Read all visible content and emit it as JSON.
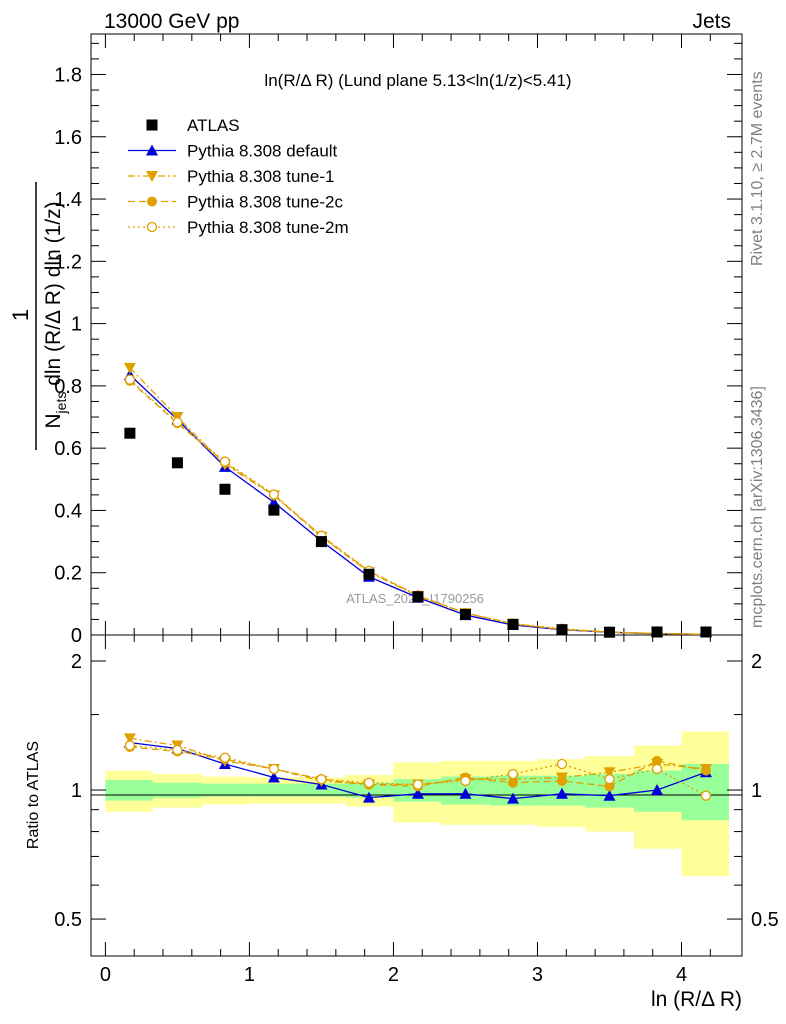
{
  "header": {
    "left": "13000 GeV pp",
    "right": "Jets",
    "side_top": "Rivet 3.1.10, ≥ 2.7M events",
    "side_bottom": "mcplots.cern.ch [arXiv:1306.3436]",
    "watermark": "ATLAS_2020_I1790256"
  },
  "chart_data": {
    "type": "scatter",
    "title": "ln(R/Δ R) (Lund plane 5.13<ln(1/z)<5.41)",
    "xlabel": "ln (R/Δ R)",
    "ylabel_main": "1/N_jets d²N_emissions / dln(R/ΔR) dln(1/z)",
    "ylabel_ratio": "Ratio to ATLAS",
    "xlim": [
      -0.1,
      4.42
    ],
    "ylim_main": [
      0,
      1.93
    ],
    "ylim_ratio": [
      0.41,
      2.3
    ],
    "ratio_log_scale": true,
    "x_ticks": [
      "0",
      "1",
      "2",
      "3",
      "4"
    ],
    "y_ticks_main": [
      "0",
      "0.2",
      "0.4",
      "0.6",
      "0.8",
      "1",
      "1.2",
      "1.4",
      "1.6",
      "1.8"
    ],
    "y_ticks_ratio": [
      "0.5",
      "1",
      "2"
    ],
    "x": [
      0.17,
      0.5,
      0.83,
      1.17,
      1.5,
      1.83,
      2.17,
      2.5,
      2.83,
      3.17,
      3.5,
      3.83,
      4.17
    ],
    "bin_edges": [
      0,
      0.33,
      0.67,
      1.0,
      1.33,
      1.67,
      2.0,
      2.33,
      2.67,
      3.0,
      3.33,
      3.67,
      4.0,
      4.33
    ],
    "band_inner": [
      0.055,
      0.04,
      0.035,
      0.035,
      0.035,
      0.04,
      0.06,
      0.075,
      0.08,
      0.08,
      0.09,
      0.11,
      0.15
    ],
    "band_outer": [
      0.11,
      0.09,
      0.075,
      0.07,
      0.07,
      0.085,
      0.16,
      0.17,
      0.17,
      0.18,
      0.2,
      0.27,
      0.37
    ],
    "series": [
      {
        "name": "ATLAS",
        "color": "#000000",
        "marker": "square",
        "line": "none",
        "values": [
          0.648,
          0.553,
          0.468,
          0.401,
          0.3,
          0.195,
          0.123,
          0.066,
          0.034,
          0.017,
          0.009,
          0.004,
          0.002
        ],
        "ratio": [
          1,
          1,
          1,
          1,
          1,
          1,
          1,
          1,
          1,
          1,
          1,
          1,
          1
        ]
      },
      {
        "name": "Pythia 8.308 default",
        "color": "#0000dd",
        "marker": "triangle-up",
        "line": "solid",
        "values": [
          0.835,
          0.692,
          0.54,
          0.426,
          0.302,
          0.187,
          0.12,
          0.064,
          0.032,
          0.017,
          0.0088,
          0.0041,
          0.0022
        ],
        "ratio": [
          1.29,
          1.25,
          1.15,
          1.07,
          1.03,
          0.96,
          0.98,
          0.98,
          0.955,
          0.98,
          0.97,
          1.0,
          1.1
        ]
      },
      {
        "name": "Pythia 8.308 tune-1",
        "color": "#e0a000",
        "marker": "triangle-down",
        "line": "dashdot",
        "values": [
          0.858,
          0.7,
          0.548,
          0.448,
          0.315,
          0.202,
          0.125,
          0.07,
          0.036,
          0.018,
          0.0098,
          0.0046,
          0.0023
        ],
        "ratio": [
          1.32,
          1.27,
          1.17,
          1.12,
          1.05,
          1.03,
          1.03,
          1.06,
          1.06,
          1.07,
          1.1,
          1.15,
          1.12
        ]
      },
      {
        "name": "Pythia 8.308 tune-2c",
        "color": "#e0a000",
        "marker": "circle-filled",
        "line": "dashed",
        "values": [
          0.816,
          0.68,
          0.553,
          0.45,
          0.318,
          0.205,
          0.126,
          0.071,
          0.035,
          0.018,
          0.0092,
          0.0048,
          0.0022
        ],
        "ratio": [
          1.26,
          1.23,
          1.18,
          1.12,
          1.06,
          1.03,
          1.02,
          1.07,
          1.04,
          1.05,
          1.02,
          1.17,
          1.11
        ]
      },
      {
        "name": "Pythia 8.308 tune-2m",
        "color": "#e0a000",
        "marker": "circle-open",
        "line": "dotted",
        "values": [
          0.82,
          0.683,
          0.557,
          0.451,
          0.319,
          0.206,
          0.127,
          0.07,
          0.037,
          0.02,
          0.0095,
          0.0042,
          0.0019
        ],
        "ratio": [
          1.27,
          1.24,
          1.19,
          1.12,
          1.06,
          1.04,
          1.03,
          1.05,
          1.09,
          1.15,
          1.06,
          1.12,
          0.97
        ]
      }
    ]
  }
}
